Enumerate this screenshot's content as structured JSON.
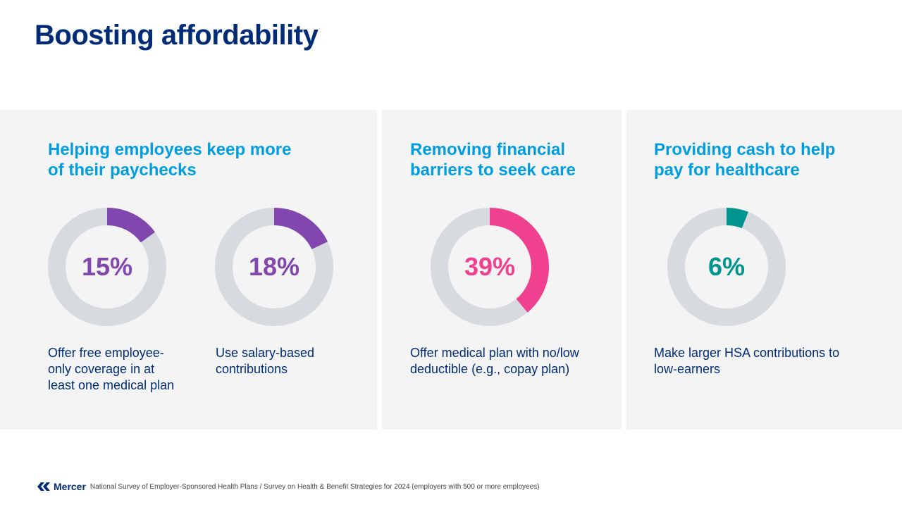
{
  "title": "Boosting affordability",
  "panels": [
    {
      "heading": "Helping employees keep more of their paychecks",
      "items": [
        {
          "value": 15,
          "label": "15%",
          "color": "#8246af",
          "description": "Offer free employee-only coverage in at least one medical plan"
        },
        {
          "value": 18,
          "label": "18%",
          "color": "#8246af",
          "description": "Use salary-based contributions"
        }
      ]
    },
    {
      "heading": "Removing financial barriers to seek care",
      "items": [
        {
          "value": 39,
          "label": "39%",
          "color": "#ef4190",
          "description": "Offer medical plan with no/low deductible (e.g., copay plan)"
        }
      ]
    },
    {
      "heading": "Providing cash to help pay for healthcare",
      "items": [
        {
          "value": 6,
          "label": "6%",
          "color": "#00968f",
          "description": "Make larger HSA contributions to low-earners"
        }
      ]
    }
  ],
  "track_color": "#d7dadf",
  "footer": {
    "logo": "Mercer",
    "source": "National Survey of Employer-Sponsored Health Plans / Survey on Health & Benefit Strategies for 2024 (employers with 500 or more employees)"
  }
}
